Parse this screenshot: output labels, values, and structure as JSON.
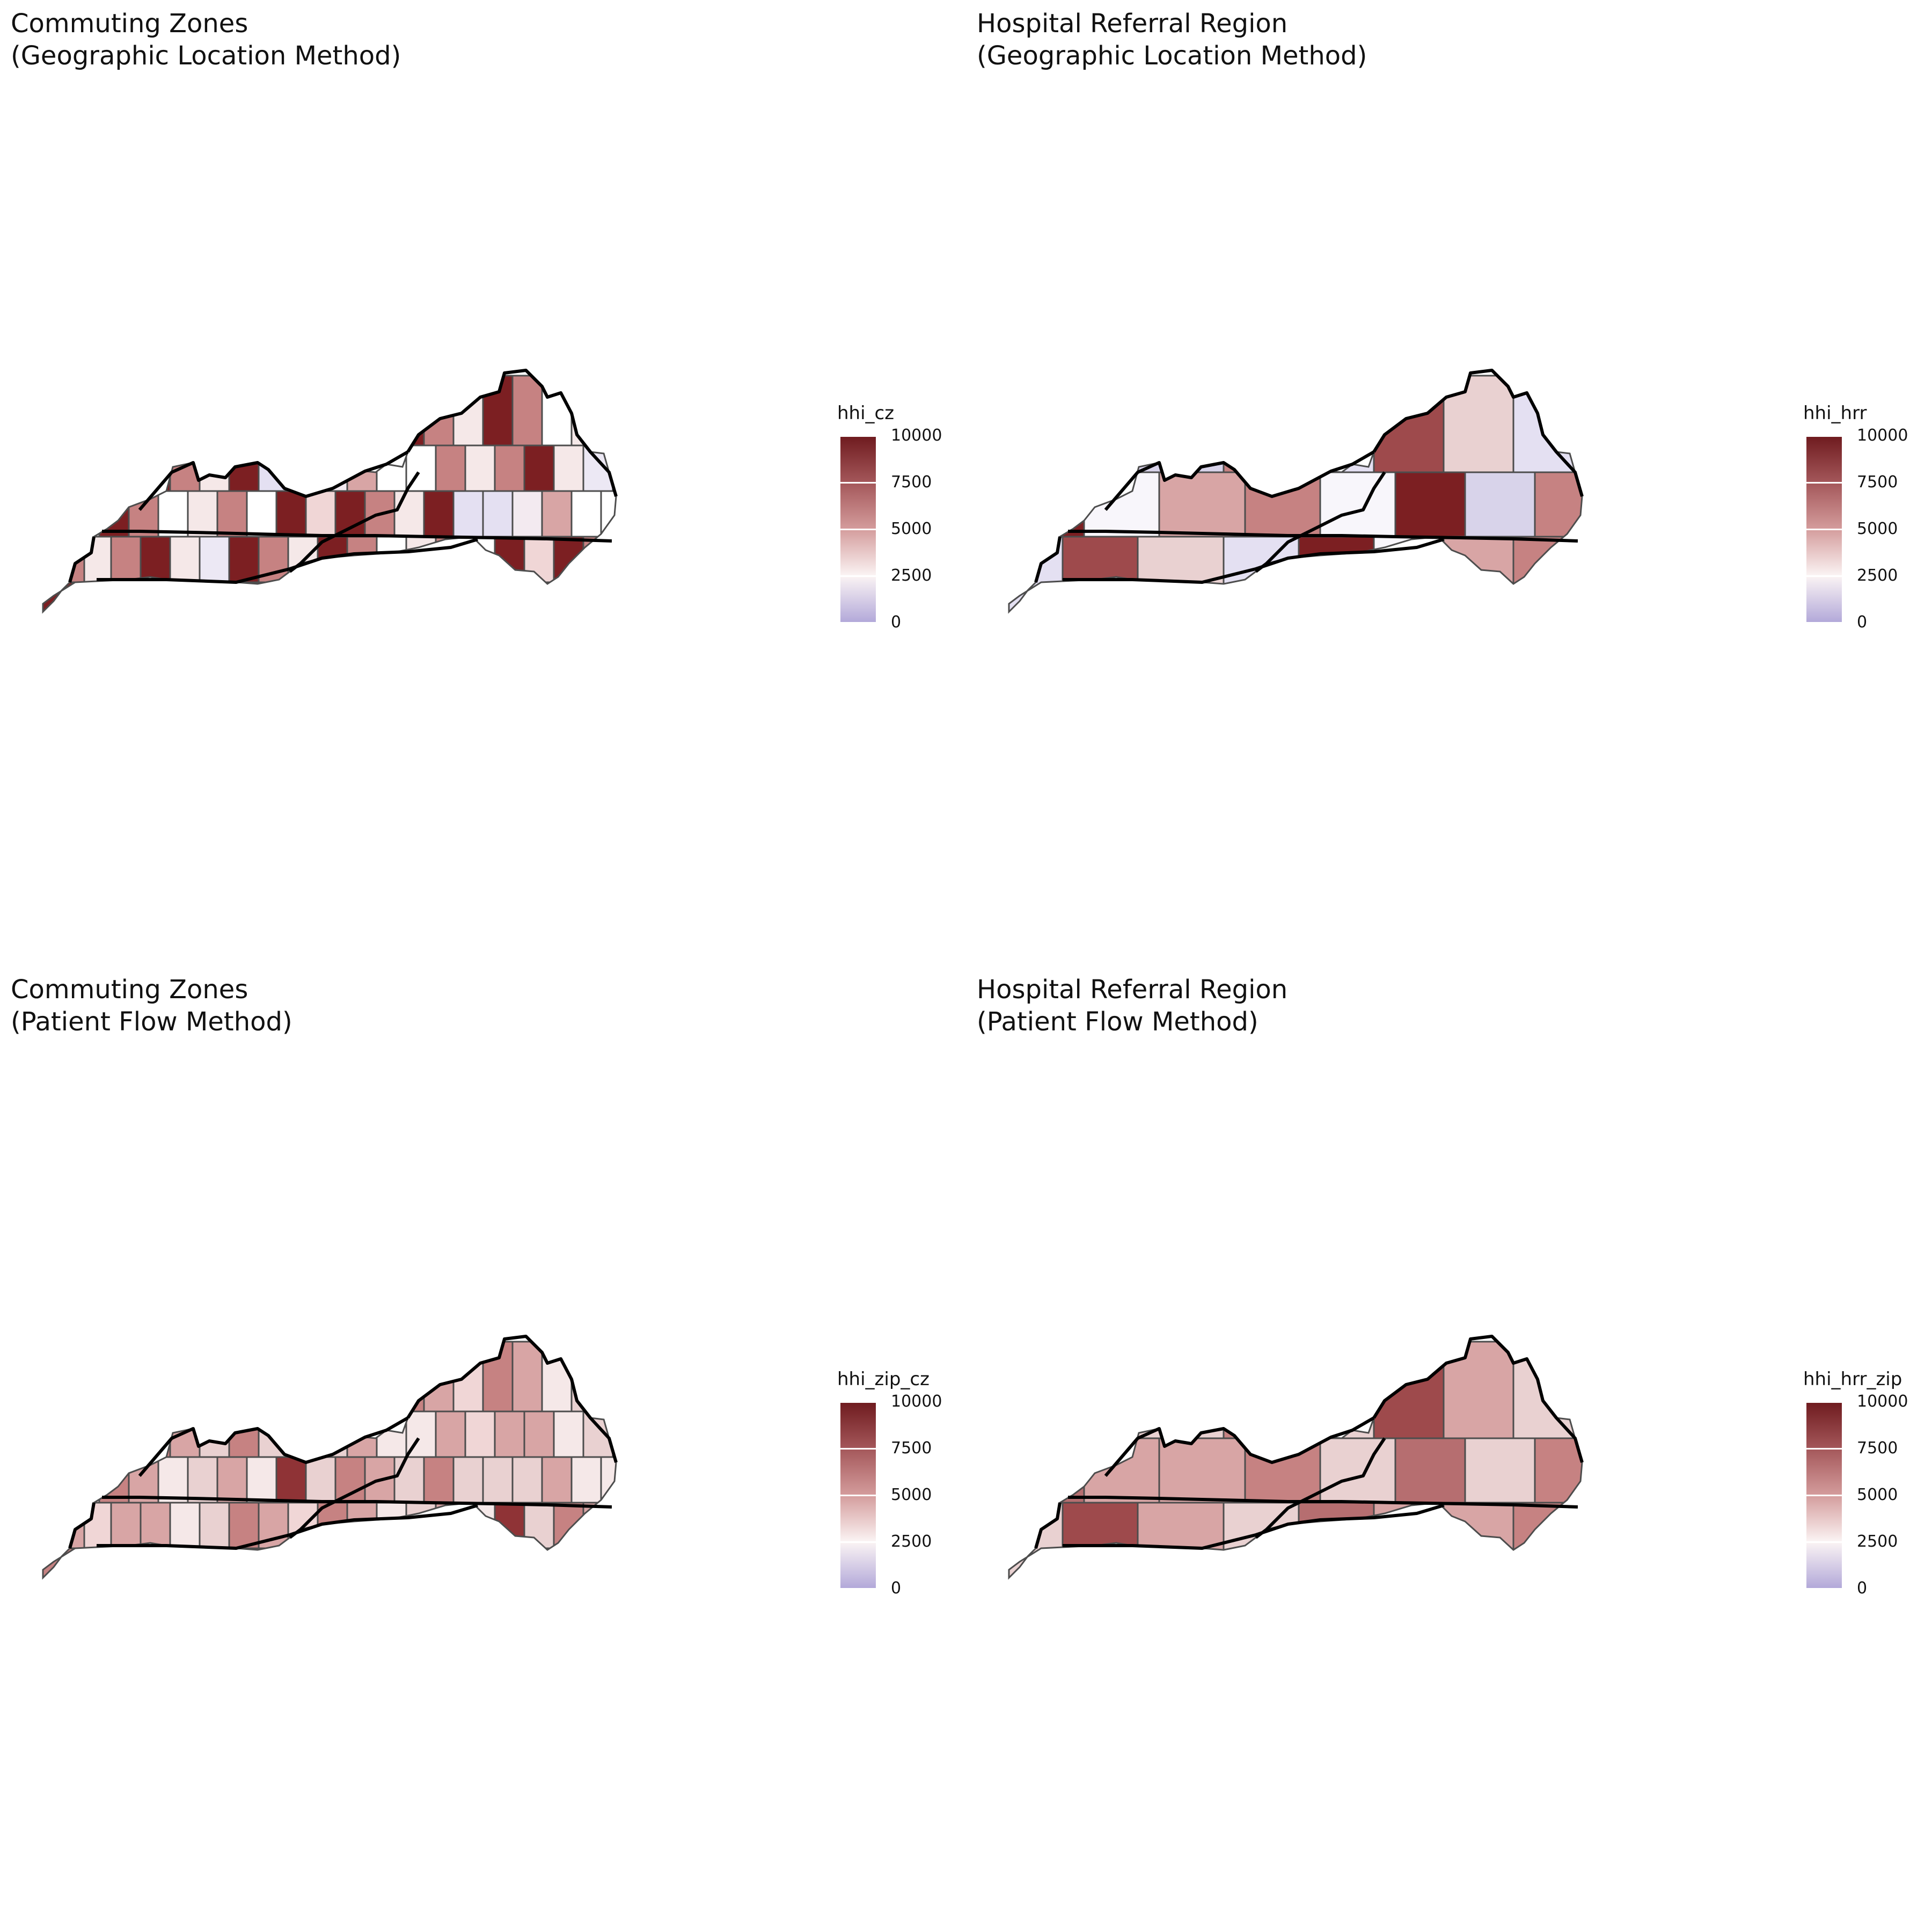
{
  "panels": [
    {
      "title": "Commuting Zones\n(Geographic Location Method)",
      "legend_title": "hhi_cz",
      "granularity": "cz",
      "colors": [
        "#e4e0f2",
        "#e4e0f2",
        "#f3eaf0",
        "#d8a5a5",
        "#ffffff",
        "#ffffff",
        "#c68282",
        "#f5e8e8",
        "#c68282",
        "#7c1f22",
        "#f5e8e8",
        "#ece8f4",
        "#7c1f22",
        "#c68282",
        "#f5e8e8",
        "#7c1f22",
        "#c68282",
        "#ffffff",
        "#f5e8e8",
        "#c68282",
        "#ffffff",
        "#7c1f22",
        "#f0d6d6",
        "#7c1f22",
        "#c68282",
        "#f5e8e8",
        "#7c1f22"
      ]
    },
    {
      "title": "Hospital Referral Region\n(Geographic Location Method)",
      "legend_title": "hhi_hrr",
      "granularity": "hrr",
      "colors": [
        "#f8f6fb",
        "#7c1f22",
        "#d8d3ea",
        "#c68282",
        "#e4e0f2",
        "#9e4a4c",
        "#e9d1d1",
        "#e4e0f2",
        "#7c1f22",
        "#f8f6fb",
        "#d8a5a5",
        "#c68282"
      ]
    },
    {
      "title": "Commuting Zones\n(Patient Flow Method)",
      "legend_title": "hhi_zip_cz",
      "granularity": "cz",
      "colors": [
        "#e9d1d1",
        "#e9d1d1",
        "#e9d1d1",
        "#d8a5a5",
        "#f5e8e8",
        "#f5e8e8",
        "#d8a5a5",
        "#f0d6d6",
        "#d8a5a5",
        "#d8a5a5",
        "#f5e8e8",
        "#e9d1d1",
        "#c68282",
        "#d8a5a5",
        "#f0d6d6",
        "#c68282",
        "#d8a5a5",
        "#f5e8e8",
        "#e9d1d1",
        "#d8a5a5",
        "#f5e8e8",
        "#8f3336",
        "#e9d1d1",
        "#c68282",
        "#d8a5a5",
        "#e9d1d1",
        "#c68282"
      ]
    },
    {
      "title": "Hospital Referral Region\n(Patient Flow Method)",
      "legend_title": "hhi_hrr_zip",
      "granularity": "hrr",
      "colors": [
        "#e9d1d1",
        "#b66e70",
        "#e9d1d1",
        "#c68282",
        "#e9d1d1",
        "#9e4a4c",
        "#d8a5a5",
        "#e9d1d1",
        "#b66e70",
        "#d8a5a5",
        "#d8a5a5",
        "#c68282"
      ]
    }
  ],
  "legend": {
    "tick_labels": [
      "10000",
      "7500",
      "5000",
      "2500",
      "0"
    ],
    "tick_values": [
      10000,
      7500,
      5000,
      2500,
      0
    ],
    "range": [
      0,
      10000
    ],
    "gradient": [
      "#6e1a1e",
      "#a4575a",
      "#d49c9c",
      "#fbf4f4",
      "#b2a8d9"
    ]
  },
  "colors": {
    "region_border": "#4d4d4d",
    "state_border": "#000000",
    "missing": "#7f7f7f"
  }
}
